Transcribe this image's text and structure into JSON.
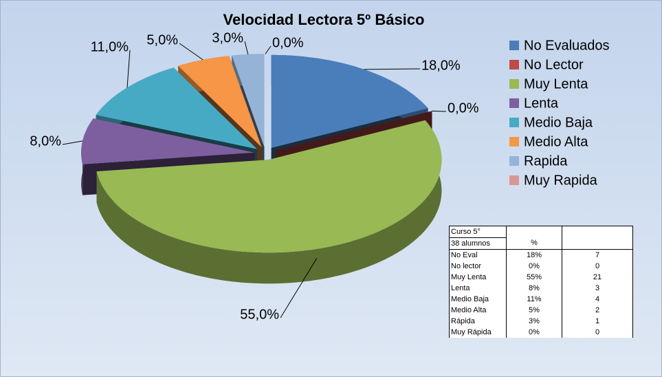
{
  "chart_data": {
    "type": "pie",
    "title": "Velocidad Lectora 5º Básico",
    "categories": [
      "No Evaluados",
      "No Lector",
      "Muy Lenta",
      "Lenta",
      "Medio Baja",
      "Medio Alta",
      "Rapida",
      "Muy Rapida"
    ],
    "values": [
      18,
      0,
      55,
      8,
      11,
      5,
      3,
      0
    ],
    "value_labels": [
      "18,0%",
      "0,0%",
      "55,0%",
      "8,0%",
      "11,0%",
      "5,0%",
      "3,0%",
      "0,0%"
    ],
    "colors": [
      "#4a7ebb",
      "#be4b48",
      "#98b954",
      "#7d5fa0",
      "#46aac5",
      "#f79646",
      "#95b3d7",
      "#d99694"
    ],
    "legend": "right"
  },
  "table": {
    "caption_lines": [
      "Curso 5°",
      "38 alumnos"
    ],
    "percent_header": "%",
    "rows": [
      [
        "No Eval",
        "18%",
        7
      ],
      [
        "No lector",
        "0%",
        0
      ],
      [
        "Muy Lenta",
        "55%",
        21
      ],
      [
        "Lenta",
        "8%",
        3
      ],
      [
        "Medio Baja",
        "11%",
        4
      ],
      [
        "Medio Alta",
        "5%",
        2
      ],
      [
        "Rápida",
        "3%",
        1
      ],
      [
        "Muy Rápida",
        "0%",
        0
      ]
    ]
  }
}
